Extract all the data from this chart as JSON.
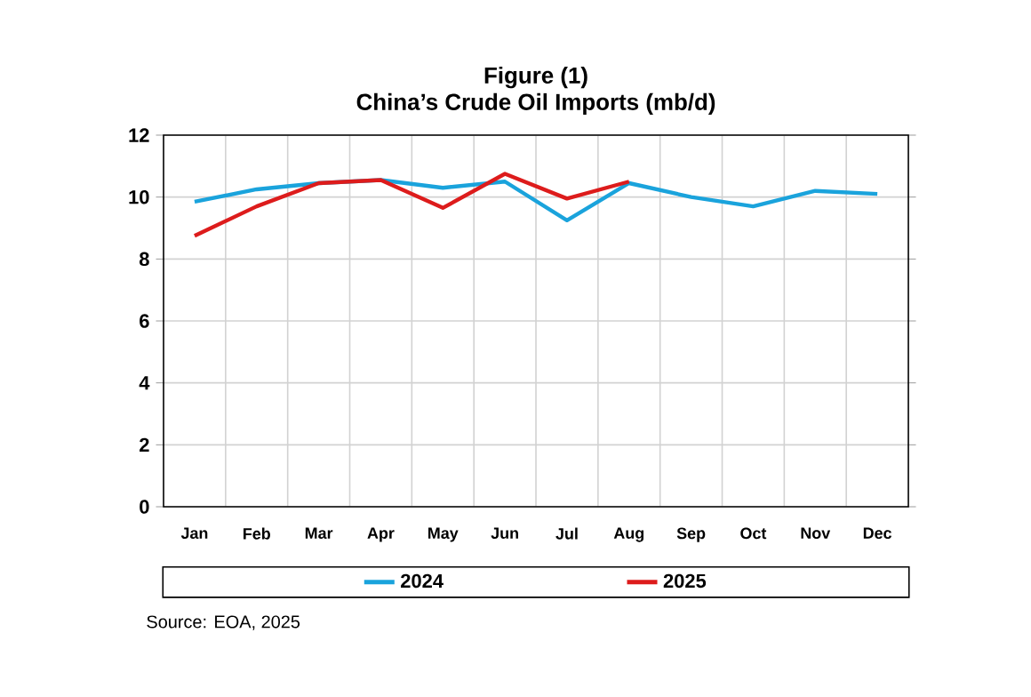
{
  "chart_data": {
    "type": "line",
    "title": "Figure (1)",
    "subtitle": "China’s Crude Oil Imports (mb/d)",
    "categories": [
      "Jan",
      "Feb",
      "Mar",
      "Apr",
      "May",
      "Jun",
      "Jul",
      "Aug",
      "Sep",
      "Oct",
      "Nov",
      "Dec"
    ],
    "series": [
      {
        "name": "2024",
        "color": "#1aa3dc",
        "values": [
          9.85,
          10.25,
          10.45,
          10.55,
          10.3,
          10.5,
          9.25,
          10.45,
          10.0,
          9.7,
          10.2,
          10.1
        ]
      },
      {
        "name": "2025",
        "color": "#dd1c1c",
        "values": [
          8.75,
          9.7,
          10.45,
          10.55,
          9.65,
          10.75,
          9.95,
          10.5,
          null,
          null,
          null,
          null
        ]
      }
    ],
    "ylim": [
      0,
      12
    ],
    "yticks": [
      0,
      2,
      4,
      6,
      8,
      10,
      12
    ],
    "grid": true,
    "legend": "bottom",
    "marker": "none",
    "line_style": "solid",
    "annotations": [
      "Source: EOA, 2025"
    ]
  }
}
